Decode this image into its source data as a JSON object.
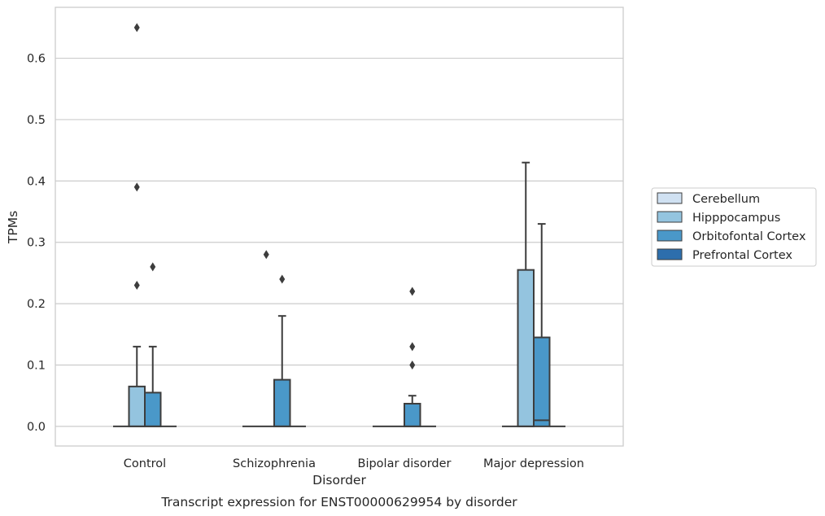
{
  "chart_data": {
    "type": "box",
    "title": "",
    "caption": "Transcript expression for ENST00000629954 by disorder",
    "xlabel": "Disorder",
    "ylabel": "TPMs",
    "ylim": [
      -0.032,
      0.683
    ],
    "yticks": [
      0.0,
      0.1,
      0.2,
      0.3,
      0.4,
      0.5,
      0.6
    ],
    "ytick_labels": [
      "0.0",
      "0.1",
      "0.2",
      "0.3",
      "0.4",
      "0.5",
      "0.6"
    ],
    "grid": "horizontal",
    "legend_position": "right",
    "categories": [
      "Control",
      "Schizophrenia",
      "Bipolar disorder",
      "Major depression"
    ],
    "series": [
      {
        "name": "Cerebellum",
        "color": "#d0e1f2",
        "boxes": [
          {
            "q1": 0,
            "median": 0,
            "q3": 0,
            "whisker_low": 0,
            "whisker_high": 0,
            "outliers": []
          },
          {
            "q1": 0,
            "median": 0,
            "q3": 0,
            "whisker_low": 0,
            "whisker_high": 0,
            "outliers": []
          },
          {
            "q1": 0,
            "median": 0,
            "q3": 0,
            "whisker_low": 0,
            "whisker_high": 0,
            "outliers": []
          },
          {
            "q1": 0,
            "median": 0,
            "q3": 0,
            "whisker_low": 0,
            "whisker_high": 0,
            "outliers": []
          }
        ]
      },
      {
        "name": "Hipppocampus",
        "color": "#94c4df",
        "boxes": [
          {
            "q1": 0,
            "median": 0,
            "q3": 0.065,
            "whisker_low": 0,
            "whisker_high": 0.13,
            "outliers": [
              0.23,
              0.39,
              0.65
            ]
          },
          {
            "q1": 0,
            "median": 0,
            "q3": 0,
            "whisker_low": 0,
            "whisker_high": 0,
            "outliers": [
              0.28
            ]
          },
          {
            "q1": 0,
            "median": 0,
            "q3": 0,
            "whisker_low": 0,
            "whisker_high": 0,
            "outliers": []
          },
          {
            "q1": 0,
            "median": 0,
            "q3": 0.255,
            "whisker_low": 0,
            "whisker_high": 0.43,
            "outliers": []
          }
        ]
      },
      {
        "name": "Orbitofontal Cortex",
        "color": "#4a98c9",
        "boxes": [
          {
            "q1": 0,
            "median": 0,
            "q3": 0.055,
            "whisker_low": 0,
            "whisker_high": 0.13,
            "outliers": [
              0.26
            ]
          },
          {
            "q1": 0,
            "median": 0,
            "q3": 0.076,
            "whisker_low": 0,
            "whisker_high": 0.18,
            "outliers": [
              0.24
            ]
          },
          {
            "q1": 0,
            "median": 0,
            "q3": 0.037,
            "whisker_low": 0,
            "whisker_high": 0.05,
            "outliers": [
              0.1,
              0.13,
              0.22
            ]
          },
          {
            "q1": 0,
            "median": 0.01,
            "q3": 0.145,
            "whisker_low": 0,
            "whisker_high": 0.33,
            "outliers": []
          }
        ]
      },
      {
        "name": "Prefrontal Cortex",
        "color": "#2d6eac",
        "boxes": [
          {
            "q1": 0,
            "median": 0,
            "q3": 0,
            "whisker_low": 0,
            "whisker_high": 0,
            "outliers": []
          },
          {
            "q1": 0,
            "median": 0,
            "q3": 0,
            "whisker_low": 0,
            "whisker_high": 0,
            "outliers": []
          },
          {
            "q1": 0,
            "median": 0,
            "q3": 0,
            "whisker_low": 0,
            "whisker_high": 0,
            "outliers": []
          },
          {
            "q1": 0,
            "median": 0,
            "q3": 0,
            "whisker_low": 0,
            "whisker_high": 0,
            "outliers": []
          }
        ]
      }
    ],
    "colors": {
      "edge": "#3d3d3d",
      "grid": "#cccccc",
      "frame": "#cccccc",
      "text": "#262626"
    }
  }
}
